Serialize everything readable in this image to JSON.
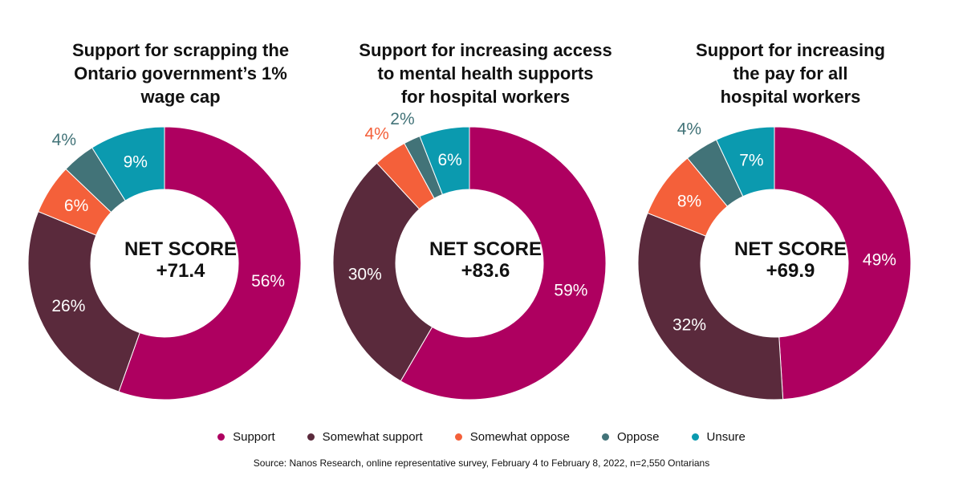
{
  "colors": {
    "support": "#ae0060",
    "somewhat_support": "#5a2a3c",
    "somewhat_oppose": "#f4603a",
    "oppose": "#427378",
    "unsure": "#0b9aaf"
  },
  "chart_data": [
    {
      "type": "pie",
      "title_lines": [
        "Support for scrapping the",
        "Ontario government’s 1%",
        "wage cap"
      ],
      "center_lines": [
        "NET SCORE",
        "+71.4"
      ],
      "categories": [
        "Support",
        "Somewhat support",
        "Somewhat oppose",
        "Oppose",
        "Unsure"
      ],
      "values": [
        56,
        26,
        6,
        4,
        9
      ],
      "labels": [
        "56%",
        "26%",
        "6%",
        "4%",
        "9%"
      ]
    },
    {
      "type": "pie",
      "title_lines": [
        "Support for increasing access",
        "to mental health supports",
        "for hospital workers"
      ],
      "center_lines": [
        "NET SCORE",
        "+83.6"
      ],
      "categories": [
        "Support",
        "Somewhat support",
        "Somewhat oppose",
        "Oppose",
        "Unsure"
      ],
      "values": [
        59,
        30,
        4,
        2,
        6
      ],
      "labels": [
        "59%",
        "30%",
        "4%",
        "2%",
        "6%"
      ]
    },
    {
      "type": "pie",
      "title_lines": [
        "Support for increasing",
        "the pay for all",
        "hospital workers"
      ],
      "center_lines": [
        "NET SCORE",
        "+69.9"
      ],
      "categories": [
        "Support",
        "Somewhat support",
        "Somewhat oppose",
        "Oppose",
        "Unsure"
      ],
      "values": [
        49,
        32,
        8,
        4,
        7
      ],
      "labels": [
        "49%",
        "32%",
        "8%",
        "4%",
        "7%"
      ]
    }
  ],
  "legend": [
    {
      "label": "Support",
      "key": "support"
    },
    {
      "label": "Somewhat support",
      "key": "somewhat_support"
    },
    {
      "label": "Somewhat oppose",
      "key": "somewhat_oppose"
    },
    {
      "label": "Oppose",
      "key": "oppose"
    },
    {
      "label": "Unsure",
      "key": "unsure"
    }
  ],
  "source": "Source:  Nanos Research, online representative survey, February 4 to February 8, 2022, n=2,550 Ontarians"
}
